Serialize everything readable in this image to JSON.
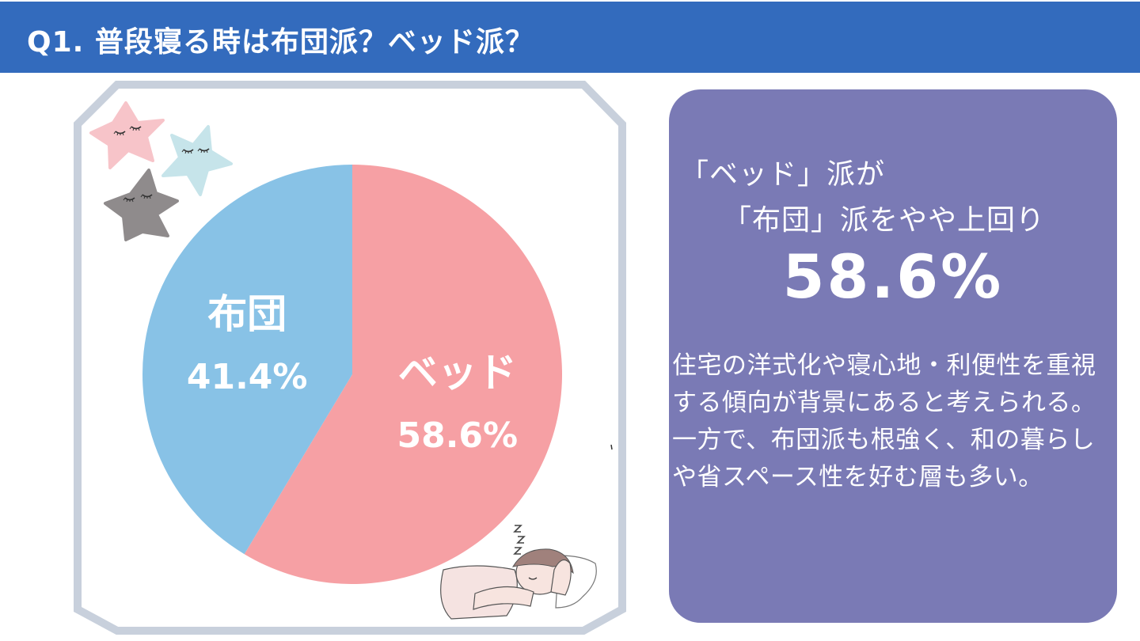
{
  "header": {
    "title": "Q1. 普段寝る時は布団派？ベッド派？"
  },
  "chart_data": {
    "type": "pie",
    "title": "",
    "categories": [
      "ベッド",
      "布団"
    ],
    "values": [
      58.6,
      41.4
    ],
    "value_labels": [
      "58.6%",
      "41.4%"
    ],
    "start_angle_deg": 0,
    "direction": "clockwise",
    "colors": [
      "#f6a0a4",
      "#88c2e6"
    ],
    "legend": "none"
  },
  "panel": {
    "headline_line1": "「ベッド」派が",
    "headline_line2": "「布団」派をやや上回り",
    "big_percent": "58.6%",
    "body": "住宅の洋式化や寝心地・利便性を重視する傾向が背景にあると考えられる。一方で、布団派も根強く、和の暮らしや省スペース性を好む層も多い。"
  },
  "decorations": {
    "stars": [
      "pink-star-icon",
      "light-blue-star-icon",
      "gray-star-icon"
    ],
    "sleeping_person": "sleeping-person-illustration",
    "zzz": "zzz-icon"
  },
  "colors": {
    "header_bg": "#336bbd",
    "panel_bg": "#7a7ab5",
    "frame": "#c8d0dc",
    "bed": "#f6a0a4",
    "futon": "#88c2e6"
  }
}
